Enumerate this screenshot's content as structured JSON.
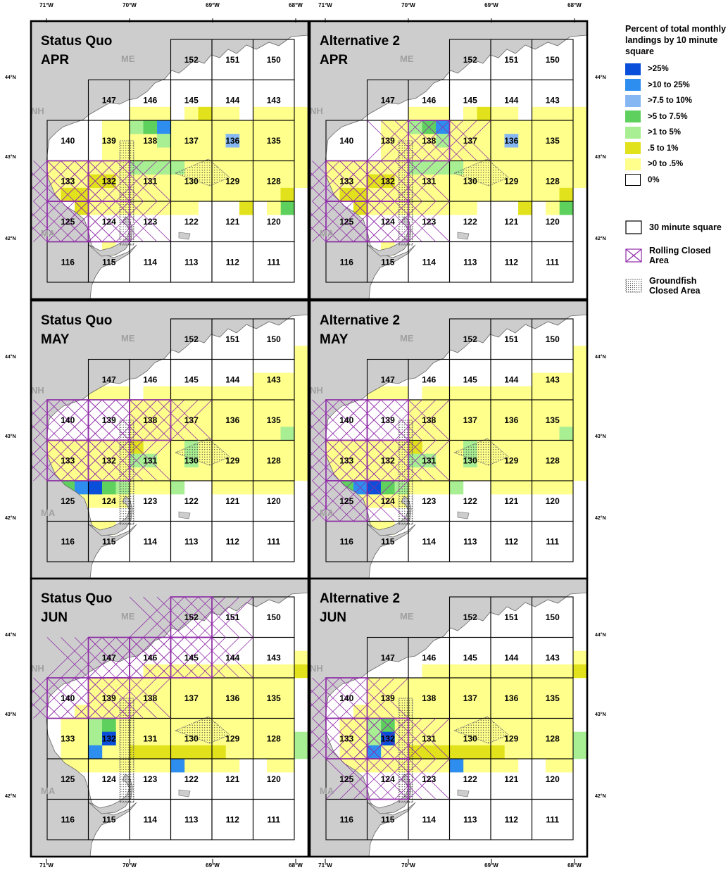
{
  "lon_labels": [
    "71°W",
    "70°W",
    "69°W",
    "68°W"
  ],
  "lat_labels": [
    "44°N",
    "43°N",
    "42°N"
  ],
  "panels": [
    {
      "title1": "Status Quo",
      "title2": "APR"
    },
    {
      "title1": "Alternative 2",
      "title2": "APR"
    },
    {
      "title1": "Status Quo",
      "title2": "MAY"
    },
    {
      "title1": "Alternative 2",
      "title2": "MAY"
    },
    {
      "title1": "Status Quo",
      "title2": "JUN"
    },
    {
      "title1": "Alternative 2",
      "title2": "JUN"
    }
  ],
  "state_labels": {
    "me": "ME",
    "nh": "NH",
    "ma": "MA"
  },
  "squares": [
    {
      "id": "152",
      "col": 3,
      "row": 0
    },
    {
      "id": "151",
      "col": 4,
      "row": 0
    },
    {
      "id": "150",
      "col": 5,
      "row": 0
    },
    {
      "id": "147",
      "col": 1,
      "row": 1
    },
    {
      "id": "146",
      "col": 2,
      "row": 1
    },
    {
      "id": "145",
      "col": 3,
      "row": 1
    },
    {
      "id": "144",
      "col": 4,
      "row": 1
    },
    {
      "id": "143",
      "col": 5,
      "row": 1
    },
    {
      "id": "140",
      "col": 0,
      "row": 2
    },
    {
      "id": "139",
      "col": 1,
      "row": 2
    },
    {
      "id": "138",
      "col": 2,
      "row": 2
    },
    {
      "id": "137",
      "col": 3,
      "row": 2
    },
    {
      "id": "136",
      "col": 4,
      "row": 2
    },
    {
      "id": "135",
      "col": 5,
      "row": 2
    },
    {
      "id": "133",
      "col": 0,
      "row": 3
    },
    {
      "id": "132",
      "col": 1,
      "row": 3
    },
    {
      "id": "131",
      "col": 2,
      "row": 3
    },
    {
      "id": "130",
      "col": 3,
      "row": 3
    },
    {
      "id": "129",
      "col": 4,
      "row": 3
    },
    {
      "id": "128",
      "col": 5,
      "row": 3
    },
    {
      "id": "125",
      "col": 0,
      "row": 4
    },
    {
      "id": "124",
      "col": 1,
      "row": 4
    },
    {
      "id": "123",
      "col": 2,
      "row": 4
    },
    {
      "id": "122",
      "col": 3,
      "row": 4
    },
    {
      "id": "121",
      "col": 4,
      "row": 4
    },
    {
      "id": "120",
      "col": 5,
      "row": 4
    },
    {
      "id": "116",
      "col": 0,
      "row": 5
    },
    {
      "id": "115",
      "col": 1,
      "row": 5
    },
    {
      "id": "114",
      "col": 2,
      "row": 5
    },
    {
      "id": "113",
      "col": 3,
      "row": 5
    },
    {
      "id": "112",
      "col": 4,
      "row": 5
    },
    {
      "id": "111",
      "col": 5,
      "row": 5
    }
  ],
  "rolling_closed": [
    [
      "133",
      "125",
      "132",
      "124"
    ],
    [
      "133",
      "125",
      "132",
      "124",
      "138"
    ],
    [
      "140",
      "133",
      "139",
      "132",
      "138"
    ],
    [
      "140",
      "133",
      "125",
      "139",
      "132"
    ],
    [
      "140",
      "139",
      "147",
      "146",
      "145",
      "152"
    ],
    [
      "140",
      "133",
      "132",
      "124"
    ]
  ],
  "legend": {
    "title": "Percent of total monthly landings by 10 minute square",
    "classes": [
      {
        "label": ">25%",
        "color": "#0a4fd9"
      },
      {
        "label": ">10 to 25%",
        "color": "#2e8ef0"
      },
      {
        "label": ">7.5 to 10%",
        "color": "#86b7f2"
      },
      {
        "label": ">5 to 7.5%",
        "color": "#5ed05e"
      },
      {
        "label": ">1 to 5%",
        "color": "#a8ee92"
      },
      {
        "label": ".5 to 1%",
        "color": "#e2e21c"
      },
      {
        "label": ">0 to .5%",
        "color": "#ffff8c"
      },
      {
        "label": "0%",
        "color": "#ffffff"
      }
    ],
    "square_label": "30 minute square",
    "rolling_label": "Rolling Closed Area",
    "groundfish_label": "Groundfish Closed Area"
  },
  "colors": {
    "land": "#cdcdcd",
    "rolling": "#8f2aa8",
    "grid": "#000000"
  }
}
